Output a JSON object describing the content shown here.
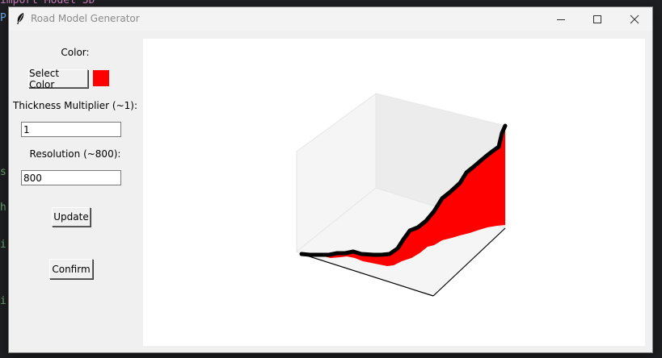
{
  "background": {
    "code_line1": "import Model 3D",
    "code_line2": "P",
    "margin_letters": [
      "s",
      "h",
      "i",
      "i"
    ]
  },
  "window": {
    "title": "Road Model Generator",
    "controls": [
      "minimize-icon",
      "maximize-icon",
      "close-icon"
    ]
  },
  "controls": {
    "color_label": "Color:",
    "select_color_label": "Select Color",
    "selected_color": "#ff0000",
    "thickness_label": "Thickness Multiplier (~1):",
    "thickness_value": "1",
    "resolution_label": "Resolution (~800):",
    "resolution_value": "800",
    "update_label": "Update",
    "confirm_label": "Confirm"
  },
  "plot": {
    "type": "3d-surface",
    "road_color": "#ff0000",
    "edge_color": "#000000"
  }
}
